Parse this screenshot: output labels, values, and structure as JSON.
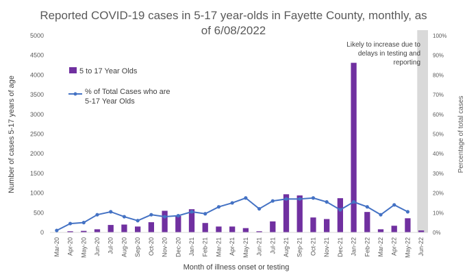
{
  "chart_data": {
    "type": "bar",
    "title_lines": [
      "Reported COVID-19 cases in 5-17 year-olds in Fayette County, monthly, as",
      "of 6/08/2022"
    ],
    "xlabel": "Month of illness onset or testing",
    "ylabel": "Number of cases 5-17 years of age",
    "y2label": "Percentage of total cases",
    "ylim": [
      0,
      5000
    ],
    "y2lim": [
      0,
      100
    ],
    "yticks": [
      "0",
      "500",
      "1000",
      "1500",
      "2000",
      "2500",
      "3000",
      "3500",
      "4000",
      "4500",
      "5000"
    ],
    "y2ticks": [
      "0%",
      "10%",
      "20%",
      "30%",
      "40%",
      "50%",
      "60%",
      "70%",
      "80%",
      "90%",
      "100%"
    ],
    "categories": [
      "Mar-20",
      "Apr-20",
      "May-20",
      "Jun-20",
      "Jul-20",
      "Aug-20",
      "Sep-20",
      "Oct-20",
      "Nov-20",
      "Dec-20",
      "Jan-21",
      "Feb-21",
      "Mar-21",
      "Apr-21",
      "May-21",
      "Jun-21",
      "Jul-21",
      "Aug-21",
      "Sep-21",
      "Oct-21",
      "Nov-21",
      "Dec-21",
      "Jan-22",
      "Feb-22",
      "Mar-22",
      "Apr-22",
      "May-22",
      "Jun-22"
    ],
    "series": [
      {
        "name": "5 to 17 Year Olds",
        "type": "bar",
        "axis": "left",
        "color": "#7030a0",
        "values": [
          5,
          30,
          40,
          80,
          190,
          200,
          150,
          260,
          550,
          420,
          590,
          240,
          150,
          150,
          110,
          30,
          280,
          970,
          940,
          380,
          340,
          870,
          4310,
          520,
          80,
          170,
          360,
          50
        ]
      },
      {
        "name": "% of Total Cases who are 5-17 Year Olds",
        "type": "line",
        "axis": "right",
        "color": "#4472c4",
        "values": [
          1,
          4.5,
          5,
          9,
          10.5,
          8,
          6,
          9,
          8,
          8.5,
          10.5,
          9.5,
          13,
          15,
          17.5,
          12,
          16,
          17,
          17,
          17.5,
          15.5,
          11.5,
          15.5,
          13,
          9,
          14,
          10.5,
          null
        ]
      }
    ],
    "legend": {
      "placement": "left",
      "entries": [
        "5 to 17 Year Olds",
        "% of Total Cases who are 5-17 Year Olds"
      ]
    },
    "annotation": {
      "lines": [
        "Likely to increase due to",
        "delays in testing and",
        "reporting"
      ],
      "shaded_category": "Jun-22",
      "shade_color": "#d9d9d9"
    },
    "grid": false
  }
}
